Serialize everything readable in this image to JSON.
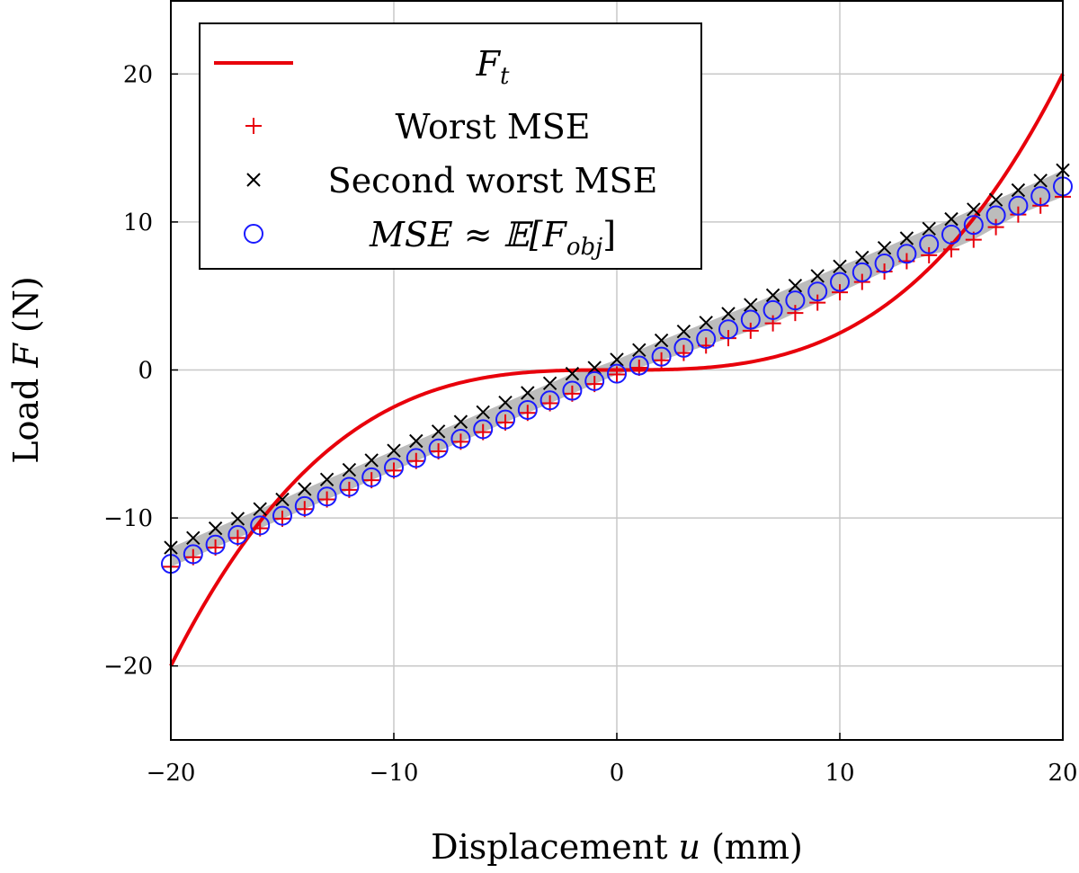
{
  "chart_data": {
    "type": "line",
    "xlabel": "Displacement u (mm)",
    "ylabel": "Load F (N)",
    "xlim": [
      -20,
      20
    ],
    "ylim": [
      -25,
      25
    ],
    "x_ticks": [
      -20,
      -10,
      0,
      10,
      20
    ],
    "y_ticks": [
      -20,
      -10,
      0,
      10,
      20
    ],
    "x_tick_labels": [
      "−20",
      "−10",
      "0",
      "10",
      "20"
    ],
    "y_tick_labels": [
      "−20",
      "−10",
      "0",
      "10",
      "20"
    ],
    "grid": true,
    "legend_position": "top-left",
    "x": [
      -20,
      -19,
      -18,
      -17,
      -16,
      -15,
      -14,
      -13,
      -12,
      -11,
      -10,
      -9,
      -8,
      -7,
      -6,
      -5,
      -4,
      -3,
      -2,
      -1,
      0,
      1,
      2,
      3,
      4,
      5,
      6,
      7,
      8,
      9,
      10,
      11,
      12,
      13,
      14,
      15,
      16,
      17,
      18,
      19,
      20
    ],
    "series": [
      {
        "name": "F_t",
        "label_display": "Ft",
        "kind": "line",
        "color": "#e8000b",
        "values": [
          -20,
          -17.15,
          -14.58,
          -12.28,
          -10.24,
          -8.44,
          -6.86,
          -5.49,
          -4.32,
          -3.33,
          -2.5,
          -1.82,
          -1.28,
          -0.86,
          -0.54,
          -0.31,
          -0.16,
          -0.07,
          -0.02,
          0,
          0,
          0,
          0.02,
          0.07,
          0.16,
          0.31,
          0.54,
          0.86,
          1.28,
          1.82,
          2.5,
          3.33,
          4.32,
          5.49,
          6.86,
          8.44,
          10.24,
          12.28,
          14.58,
          17.15,
          20
        ]
      },
      {
        "name": "Worst MSE",
        "kind": "marker-plus",
        "color": "#e8000b",
        "values": [
          -13.3,
          -12.65,
          -12.0,
          -11.35,
          -10.7,
          -10.05,
          -9.4,
          -8.75,
          -8.1,
          -7.45,
          -6.8,
          -6.15,
          -5.5,
          -4.85,
          -4.2,
          -3.55,
          -2.9,
          -2.25,
          -1.6,
          -0.95,
          -0.3,
          0.15,
          0.65,
          1.15,
          1.65,
          2.15,
          2.65,
          3.15,
          3.85,
          4.55,
          5.25,
          5.95,
          6.65,
          7.35,
          7.75,
          8.15,
          8.8,
          9.65,
          10.5,
          11.1,
          11.7
        ]
      },
      {
        "name": "Second worst MSE",
        "kind": "marker-x",
        "color": "#000000",
        "values": [
          -12.0,
          -11.35,
          -10.7,
          -10.05,
          -9.4,
          -8.75,
          -8.05,
          -7.4,
          -6.75,
          -6.1,
          -5.45,
          -4.8,
          -4.15,
          -3.5,
          -2.85,
          -2.2,
          -1.55,
          -0.9,
          -0.25,
          0.15,
          0.7,
          1.35,
          2.0,
          2.6,
          3.2,
          3.8,
          4.4,
          5.05,
          5.7,
          6.35,
          7.0,
          7.6,
          8.25,
          8.9,
          9.55,
          10.2,
          10.85,
          11.5,
          12.15,
          12.8,
          13.5
        ]
      },
      {
        "name": "MSE ≈ E[F_obj]",
        "label_display": "MSE ≈ 𝔼[Fobj]",
        "kind": "marker-circle",
        "color": "#1a1aff",
        "values": [
          -13.1,
          -12.45,
          -11.8,
          -11.15,
          -10.5,
          -9.85,
          -9.2,
          -8.55,
          -7.9,
          -7.25,
          -6.6,
          -5.95,
          -5.3,
          -4.65,
          -4.0,
          -3.35,
          -2.7,
          -2.05,
          -1.4,
          -0.75,
          -0.25,
          0.3,
          0.9,
          1.5,
          2.1,
          2.75,
          3.4,
          4.05,
          4.7,
          5.3,
          5.95,
          6.6,
          7.2,
          7.85,
          8.5,
          9.15,
          9.8,
          10.45,
          11.1,
          11.75,
          12.4
        ]
      }
    ],
    "band": {
      "color": "#b0b0b0",
      "lower": [
        -13.3,
        -12.65,
        -12.0,
        -11.35,
        -10.7,
        -10.05,
        -9.4,
        -8.75,
        -8.1,
        -7.45,
        -6.8,
        -6.15,
        -5.5,
        -4.85,
        -4.2,
        -3.55,
        -2.9,
        -2.25,
        -1.6,
        -0.95,
        -0.3,
        0.15,
        0.65,
        1.15,
        1.65,
        2.15,
        2.65,
        3.15,
        3.85,
        4.55,
        5.25,
        5.95,
        6.65,
        7.35,
        7.75,
        8.15,
        8.8,
        9.65,
        10.5,
        11.1,
        11.7
      ],
      "upper": [
        -12.0,
        -11.35,
        -10.7,
        -10.05,
        -9.4,
        -8.75,
        -8.05,
        -7.4,
        -6.75,
        -6.1,
        -5.45,
        -4.8,
        -4.15,
        -3.5,
        -2.85,
        -2.2,
        -1.55,
        -0.9,
        -0.25,
        0.15,
        0.7,
        1.35,
        2.0,
        2.6,
        3.2,
        3.8,
        4.4,
        5.05,
        5.7,
        6.35,
        7.0,
        7.6,
        8.25,
        8.9,
        9.55,
        10.2,
        10.85,
        11.5,
        12.15,
        12.8,
        13.5
      ]
    }
  }
}
